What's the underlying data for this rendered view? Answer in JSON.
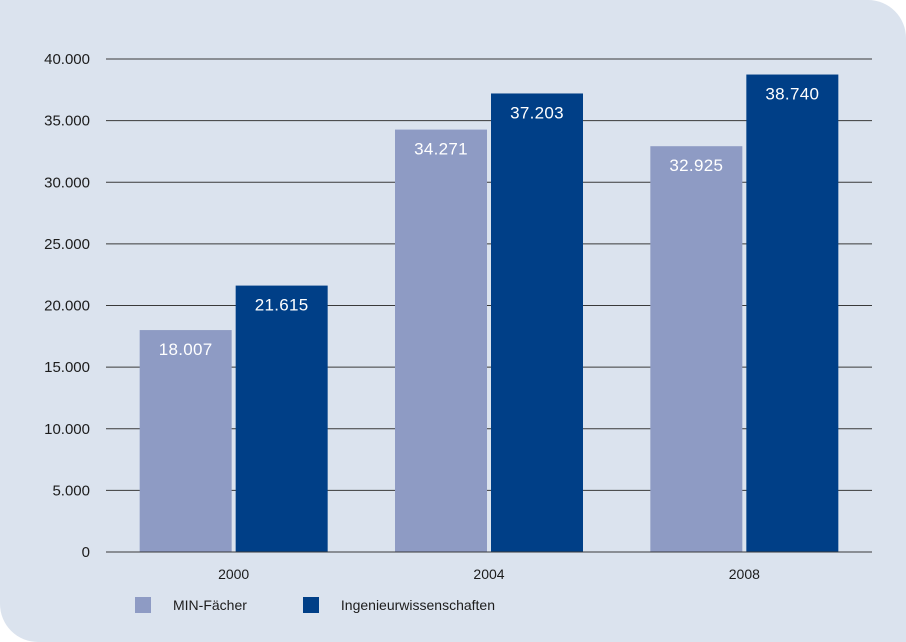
{
  "chart_data": {
    "type": "bar",
    "categories": [
      "2000",
      "2004",
      "2008"
    ],
    "series": [
      {
        "name": "MIN-Fächer",
        "values": [
          18007,
          34271,
          32925
        ],
        "labels": [
          "18.007",
          "34.271",
          "32.925"
        ],
        "color": "#8e9bc4"
      },
      {
        "name": "Ingenieurwissenschaften",
        "values": [
          21615,
          37203,
          38740
        ],
        "labels": [
          "21.615",
          "37.203",
          "38.740"
        ],
        "color": "#003f87"
      }
    ],
    "y_ticks": [
      0,
      5000,
      10000,
      15000,
      20000,
      25000,
      30000,
      35000,
      40000
    ],
    "y_tick_labels": [
      "0",
      "5.000",
      "10.000",
      "15.000",
      "20.000",
      "25.000",
      "30.000",
      "35.000",
      "40.000"
    ],
    "ylim": [
      0,
      40000
    ],
    "title": "",
    "xlabel": "",
    "ylabel": "",
    "grid": true,
    "legend_position": "bottom-left"
  }
}
